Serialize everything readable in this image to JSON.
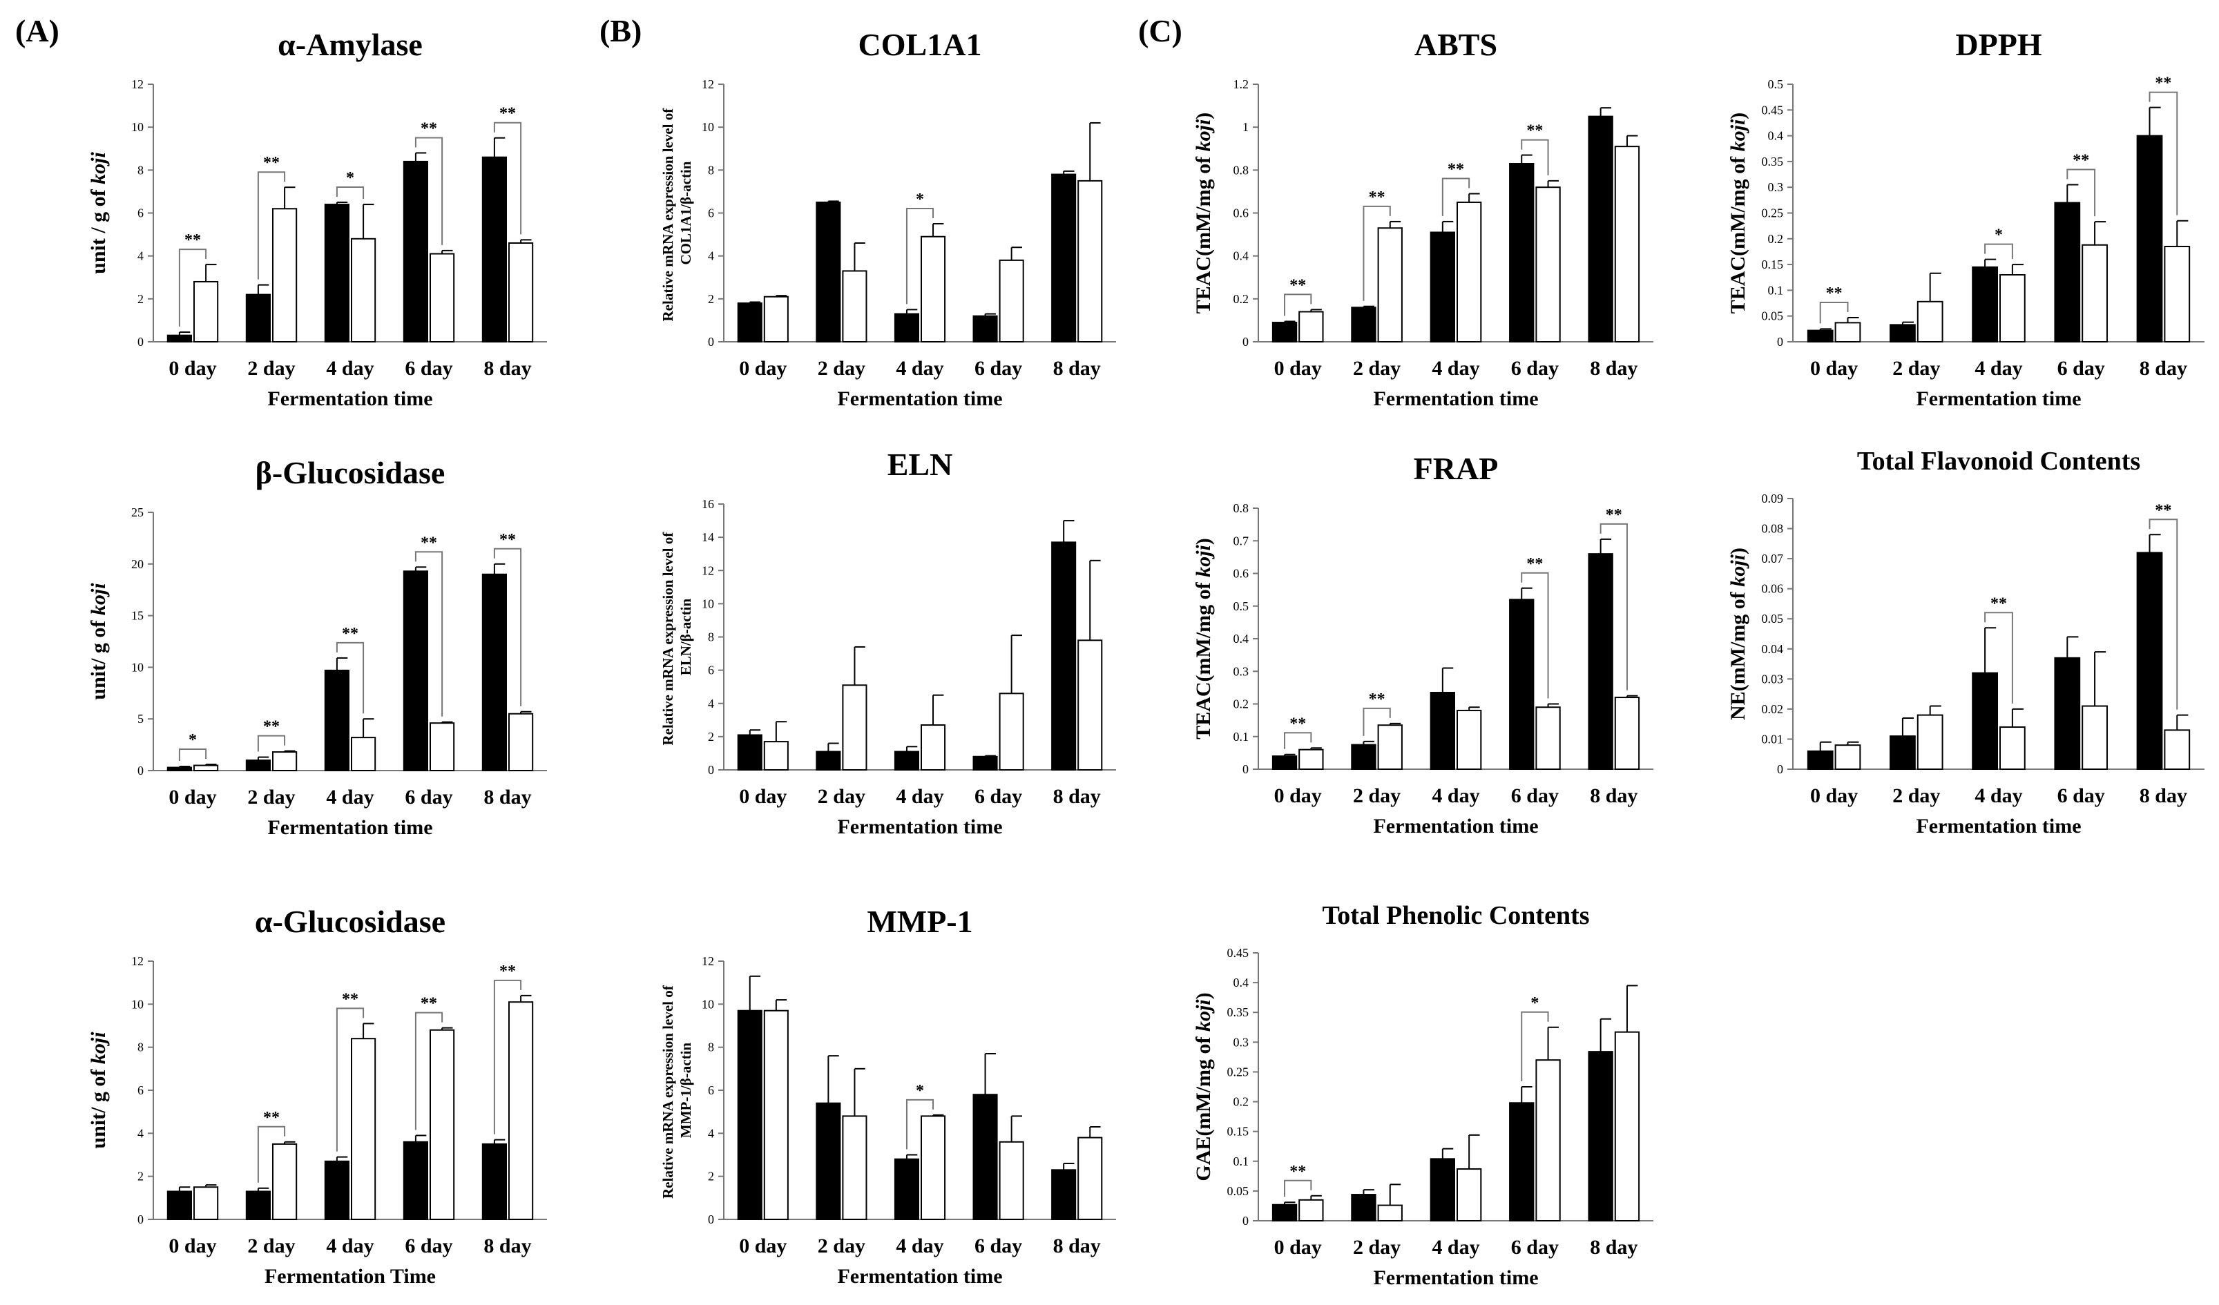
{
  "panel_labels": [
    "(A)",
    "(B)",
    "(C)"
  ],
  "colors": {
    "bar_fill_1": "#000000",
    "bar_fill_2": "#ffffff",
    "stroke": "#000000",
    "axis": "#777777"
  },
  "chart_data": [
    {
      "id": "amylase",
      "type": "bar",
      "title": "α-Amylase",
      "ylabel": "unit  / g of ",
      "ylabel_italic": "koji",
      "xlabel": "Fermentation time",
      "ylim": [
        0,
        12
      ],
      "yticks": [
        "0",
        "2",
        "4",
        "6",
        "8",
        "10",
        "12"
      ],
      "categories": [
        "0 day",
        "2 day",
        "4 day",
        "6 day",
        "8 day"
      ],
      "series": [
        {
          "name": "black",
          "values": [
            0.3,
            2.2,
            6.4,
            8.4,
            8.6
          ],
          "errors": [
            0.15,
            0.45,
            0.1,
            0.4,
            0.9
          ]
        },
        {
          "name": "white",
          "values": [
            2.8,
            6.2,
            4.8,
            4.1,
            4.6
          ],
          "errors": [
            0.8,
            1.0,
            1.6,
            0.15,
            0.15
          ]
        }
      ],
      "sig": [
        "**",
        "**",
        "*",
        "**",
        "**"
      ]
    },
    {
      "id": "bglu",
      "type": "bar",
      "title": "β-Glucosidase",
      "ylabel": "unit/ g of ",
      "ylabel_italic": "koji",
      "xlabel": "Fermentation time",
      "ylim": [
        0,
        25
      ],
      "yticks": [
        "0",
        "5",
        "10",
        "15",
        "20",
        "25"
      ],
      "categories": [
        "0 day",
        "2 day",
        "4 day",
        "6 day",
        "8 day"
      ],
      "series": [
        {
          "name": "black",
          "values": [
            0.3,
            1.0,
            9.7,
            19.3,
            19.0
          ],
          "errors": [
            0.1,
            0.3,
            1.2,
            0.4,
            1.0
          ]
        },
        {
          "name": "white",
          "values": [
            0.5,
            1.8,
            3.2,
            4.6,
            5.5
          ],
          "errors": [
            0.1,
            0.1,
            1.8,
            0.1,
            0.2
          ]
        }
      ],
      "sig": [
        "*",
        "**",
        "**",
        "**",
        "**"
      ]
    },
    {
      "id": "aglu",
      "type": "bar",
      "title": "α-Glucosidase",
      "ylabel": "unit/ g of ",
      "ylabel_italic": "koji",
      "xlabel": "Fermentation Time",
      "ylim": [
        0,
        12
      ],
      "yticks": [
        "0",
        "2",
        "4",
        "6",
        "8",
        "10",
        "12"
      ],
      "categories": [
        "0 day",
        "2 day",
        "4 day",
        "6 day",
        "8 day"
      ],
      "series": [
        {
          "name": "black",
          "values": [
            1.3,
            1.3,
            2.7,
            3.6,
            3.5
          ],
          "errors": [
            0.2,
            0.15,
            0.2,
            0.3,
            0.2
          ]
        },
        {
          "name": "white",
          "values": [
            1.5,
            3.5,
            8.4,
            8.8,
            10.1
          ],
          "errors": [
            0.1,
            0.1,
            0.7,
            0.1,
            0.3
          ]
        }
      ],
      "sig": [
        "",
        "**",
        "**",
        "**",
        "**"
      ]
    },
    {
      "id": "col1a1",
      "type": "bar",
      "title": "COL1A1",
      "ylabel": "Relative mRNA expression level of COL1A1/β-actin",
      "ylabel_italic": "",
      "xlabel": "Fermentation time",
      "ylim": [
        0,
        12
      ],
      "yticks": [
        "0",
        "2",
        "4",
        "6",
        "8",
        "10",
        "12"
      ],
      "categories": [
        "0 day",
        "2 day",
        "4 day",
        "6 day",
        "8 day"
      ],
      "series": [
        {
          "name": "black",
          "values": [
            1.8,
            6.5,
            1.3,
            1.2,
            7.8
          ],
          "errors": [
            0.05,
            0.05,
            0.2,
            0.1,
            0.15
          ]
        },
        {
          "name": "white",
          "values": [
            2.1,
            3.3,
            4.9,
            3.8,
            7.5
          ],
          "errors": [
            0.05,
            1.3,
            0.6,
            0.6,
            2.7
          ]
        }
      ],
      "sig": [
        "",
        "",
        "*",
        "",
        ""
      ]
    },
    {
      "id": "eln",
      "type": "bar",
      "title": "ELN",
      "ylabel": "Relative mRNA expression level of ELN/β-actin",
      "ylabel_italic": "",
      "xlabel": "Fermentation time",
      "ylim": [
        0,
        16
      ],
      "yticks": [
        "0",
        "2",
        "4",
        "6",
        "8",
        "10",
        "12",
        "14",
        "16"
      ],
      "categories": [
        "0 day",
        "2 day",
        "4 day",
        "6 day",
        "8 day"
      ],
      "series": [
        {
          "name": "black",
          "values": [
            2.1,
            1.1,
            1.1,
            0.8,
            13.7
          ],
          "errors": [
            0.3,
            0.5,
            0.3,
            0.05,
            1.3
          ]
        },
        {
          "name": "white",
          "values": [
            1.7,
            5.1,
            2.7,
            4.6,
            7.8
          ],
          "errors": [
            1.2,
            2.3,
            1.8,
            3.5,
            4.8
          ]
        }
      ],
      "sig": [
        "",
        "",
        "",
        "",
        ""
      ]
    },
    {
      "id": "mmp1",
      "type": "bar",
      "title": "MMP-1",
      "ylabel": "Relative mRNA expression level of MMP-1/β-actin",
      "ylabel_italic": "",
      "xlabel": "Fermentation time",
      "ylim": [
        0,
        12
      ],
      "yticks": [
        "0",
        "2",
        "4",
        "6",
        "8",
        "10",
        "12"
      ],
      "categories": [
        "0 day",
        "2 day",
        "4 day",
        "6 day",
        "8 day"
      ],
      "series": [
        {
          "name": "black",
          "values": [
            9.7,
            5.4,
            2.8,
            5.8,
            2.3
          ],
          "errors": [
            1.6,
            2.2,
            0.2,
            1.9,
            0.3
          ]
        },
        {
          "name": "white",
          "values": [
            9.7,
            4.8,
            4.8,
            3.6,
            3.8
          ],
          "errors": [
            0.5,
            2.2,
            0.05,
            1.2,
            0.5
          ]
        }
      ],
      "sig": [
        "",
        "",
        "*",
        "",
        ""
      ]
    },
    {
      "id": "abts",
      "type": "bar",
      "title": "ABTS",
      "ylabel": "TEAC(mM/mg of ",
      "ylabel_italic": "koji",
      "ylabel_suffix": ")",
      "xlabel": "Fermentation time",
      "ylim": [
        0,
        1.2
      ],
      "yticks": [
        "0",
        "0.2",
        "0.4",
        "0.6",
        "0.8",
        "1",
        "1.2"
      ],
      "categories": [
        "0 day",
        "2 day",
        "4 day",
        "6 day",
        "8 day"
      ],
      "series": [
        {
          "name": "black",
          "values": [
            0.09,
            0.16,
            0.51,
            0.83,
            1.05
          ],
          "errors": [
            0.005,
            0.005,
            0.05,
            0.04,
            0.04
          ]
        },
        {
          "name": "white",
          "values": [
            0.14,
            0.53,
            0.65,
            0.72,
            0.91
          ],
          "errors": [
            0.01,
            0.03,
            0.04,
            0.03,
            0.05
          ]
        }
      ],
      "sig": [
        "**",
        "**",
        "**",
        "**",
        ""
      ]
    },
    {
      "id": "dpph",
      "type": "bar",
      "title": "DPPH",
      "ylabel": "TEAC(mM/mg of ",
      "ylabel_italic": "koji",
      "ylabel_suffix": ")",
      "xlabel": "Fermentation time",
      "ylim": [
        0,
        0.5
      ],
      "yticks": [
        "0",
        "0.05",
        "0.1",
        "0.15",
        "0.2",
        "0.25",
        "0.3",
        "0.35",
        "0.4",
        "0.45",
        "0.5"
      ],
      "categories": [
        "0 day",
        "2 day",
        "4 day",
        "6 day",
        "8 day"
      ],
      "series": [
        {
          "name": "black",
          "values": [
            0.022,
            0.033,
            0.145,
            0.27,
            0.4
          ],
          "errors": [
            0.003,
            0.005,
            0.015,
            0.035,
            0.055
          ]
        },
        {
          "name": "white",
          "values": [
            0.037,
            0.078,
            0.13,
            0.188,
            0.185
          ],
          "errors": [
            0.01,
            0.055,
            0.02,
            0.045,
            0.05
          ]
        }
      ],
      "sig": [
        "**",
        "",
        "*",
        "**",
        "**"
      ]
    },
    {
      "id": "frap",
      "type": "bar",
      "title": "FRAP",
      "ylabel": "TEAC(mM/mg of ",
      "ylabel_italic": "koji",
      "ylabel_suffix": ")",
      "xlabel": "Fermentation time",
      "ylim": [
        0,
        0.8
      ],
      "yticks": [
        "0",
        "0.1",
        "0.2",
        "0.3",
        "0.4",
        "0.5",
        "0.6",
        "0.7",
        "0.8"
      ],
      "categories": [
        "0 day",
        "2 day",
        "4 day",
        "6 day",
        "8 day"
      ],
      "series": [
        {
          "name": "black",
          "values": [
            0.04,
            0.075,
            0.235,
            0.52,
            0.66
          ],
          "errors": [
            0.005,
            0.01,
            0.075,
            0.035,
            0.045
          ]
        },
        {
          "name": "white",
          "values": [
            0.06,
            0.135,
            0.18,
            0.19,
            0.22
          ],
          "errors": [
            0.005,
            0.005,
            0.01,
            0.01,
            0.005
          ]
        }
      ],
      "sig": [
        "**",
        "**",
        "",
        "**",
        "**"
      ]
    },
    {
      "id": "tfc",
      "type": "bar",
      "title": "Total Flavonoid Contents",
      "ylabel": "NE(mM/mg of ",
      "ylabel_italic": "koji",
      "ylabel_suffix": ")",
      "xlabel": "Fermentation time",
      "ylim": [
        0,
        0.09
      ],
      "yticks": [
        "0",
        "0.01",
        "0.02",
        "0.03",
        "0.04",
        "0.05",
        "0.06",
        "0.07",
        "0.08",
        "0.09"
      ],
      "categories": [
        "0 day",
        "2 day",
        "4 day",
        "6 day",
        "8 day"
      ],
      "series": [
        {
          "name": "black",
          "values": [
            0.006,
            0.011,
            0.032,
            0.037,
            0.072
          ],
          "errors": [
            0.003,
            0.006,
            0.015,
            0.007,
            0.006
          ]
        },
        {
          "name": "white",
          "values": [
            0.008,
            0.018,
            0.014,
            0.021,
            0.013
          ],
          "errors": [
            0.001,
            0.003,
            0.006,
            0.018,
            0.005
          ]
        }
      ],
      "sig": [
        "",
        "",
        "**",
        "",
        "**"
      ]
    },
    {
      "id": "tpc",
      "type": "bar",
      "title": "Total Phenolic Contents",
      "ylabel": "GAE(mM/mg of ",
      "ylabel_italic": "koji",
      "ylabel_suffix": ")",
      "xlabel": "Fermentation time",
      "ylim": [
        0,
        0.45
      ],
      "yticks": [
        "0",
        "0.05",
        "0.1",
        "0.15",
        "0.2",
        "0.25",
        "0.3",
        "0.35",
        "0.4",
        "0.45"
      ],
      "categories": [
        "0 day",
        "2 day",
        "4 day",
        "6 day",
        "8 day"
      ],
      "series": [
        {
          "name": "black",
          "values": [
            0.027,
            0.044,
            0.104,
            0.198,
            0.284
          ],
          "errors": [
            0.004,
            0.008,
            0.017,
            0.027,
            0.055
          ]
        },
        {
          "name": "white",
          "values": [
            0.035,
            0.026,
            0.087,
            0.27,
            0.317
          ],
          "errors": [
            0.007,
            0.035,
            0.057,
            0.055,
            0.078
          ]
        }
      ],
      "sig": [
        "**",
        "",
        "",
        "*",
        ""
      ]
    }
  ]
}
